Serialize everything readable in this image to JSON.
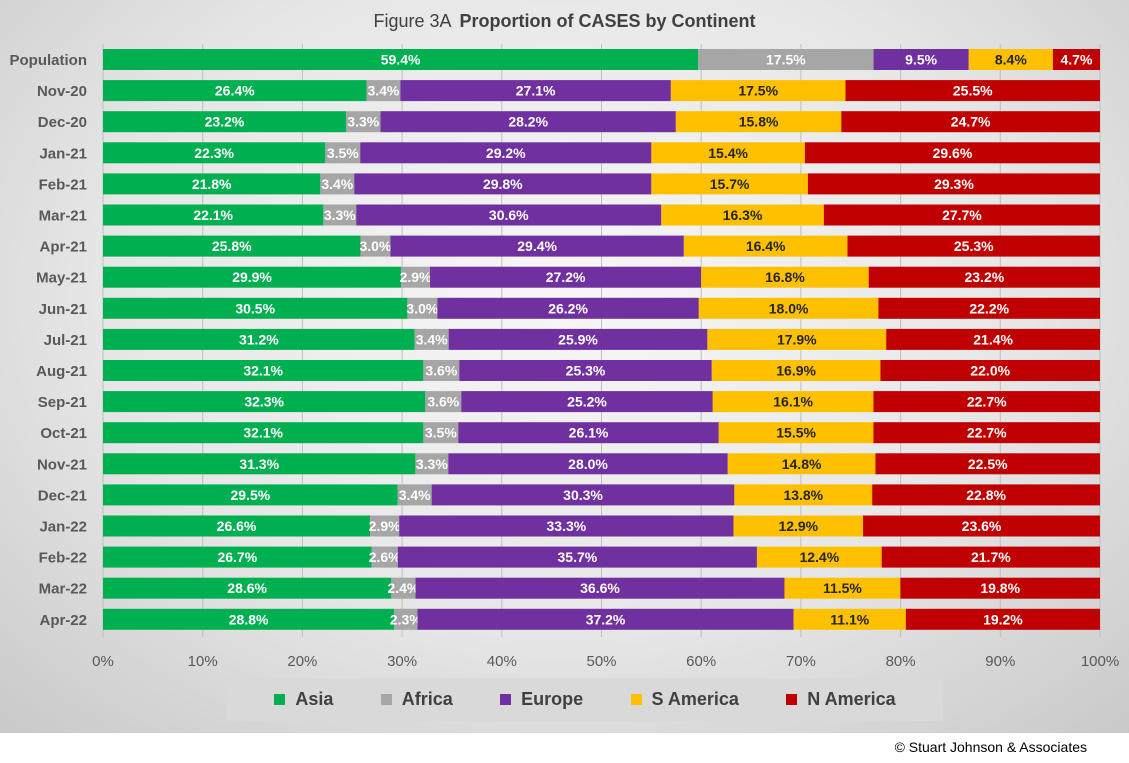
{
  "title": {
    "figure_label": "Figure  3A",
    "main": "Proportion of CASES by Continent"
  },
  "colors": {
    "Asia": "#00b050",
    "Africa": "#a6a6a6",
    "Europe": "#7030a0",
    "S America": "#ffc000",
    "N America": "#c00000"
  },
  "legend": [
    "Asia",
    "Africa",
    "Europe",
    "S America",
    "N America"
  ],
  "copyright": "© Stuart Johnson & Associates",
  "chart_data": {
    "type": "bar",
    "orientation": "horizontal",
    "stacking": "percent",
    "title": "Figure  3A Proportion of CASES by Continent",
    "categories": [
      "Population",
      "Nov-20",
      "Dec-20",
      "Jan-21",
      "Feb-21",
      "Mar-21",
      "Apr-21",
      "May-21",
      "Jun-21",
      "Jul-21",
      "Aug-21",
      "Sep-21",
      "Oct-21",
      "Nov-21",
      "Dec-21",
      "Jan-22",
      "Feb-22",
      "Mar-22",
      "Apr-22"
    ],
    "xlim": [
      0,
      100
    ],
    "xticks": [
      "0%",
      "10%",
      "20%",
      "30%",
      "40%",
      "50%",
      "60%",
      "70%",
      "80%",
      "90%",
      "100%"
    ],
    "grid": "vertical",
    "legend_position": "bottom",
    "series": [
      {
        "name": "Asia",
        "values": [
          59.4,
          26.4,
          23.2,
          22.3,
          21.8,
          22.1,
          25.8,
          29.9,
          30.5,
          31.2,
          32.1,
          32.3,
          32.1,
          31.3,
          29.5,
          26.6,
          26.7,
          28.6,
          28.8
        ]
      },
      {
        "name": "Africa",
        "values": [
          17.5,
          3.4,
          3.3,
          3.5,
          3.4,
          3.3,
          3.0,
          2.9,
          3.0,
          3.4,
          3.6,
          3.6,
          3.5,
          3.3,
          3.4,
          2.9,
          2.6,
          2.4,
          2.3
        ]
      },
      {
        "name": "Europe",
        "values": [
          9.5,
          27.1,
          28.2,
          29.2,
          29.8,
          30.6,
          29.4,
          27.2,
          26.2,
          25.9,
          25.3,
          25.2,
          26.1,
          28.0,
          30.3,
          33.3,
          35.7,
          36.6,
          37.2
        ]
      },
      {
        "name": "S America",
        "values": [
          8.4,
          17.5,
          15.8,
          15.4,
          15.7,
          16.3,
          16.4,
          16.8,
          18.0,
          17.9,
          16.9,
          16.1,
          15.5,
          14.8,
          13.8,
          12.9,
          12.4,
          11.5,
          11.1
        ]
      },
      {
        "name": "N America",
        "values": [
          4.7,
          25.5,
          24.7,
          29.6,
          29.3,
          27.7,
          25.3,
          23.2,
          22.2,
          21.4,
          22.0,
          22.7,
          22.7,
          22.5,
          22.8,
          23.6,
          21.7,
          19.8,
          19.2
        ]
      }
    ]
  }
}
